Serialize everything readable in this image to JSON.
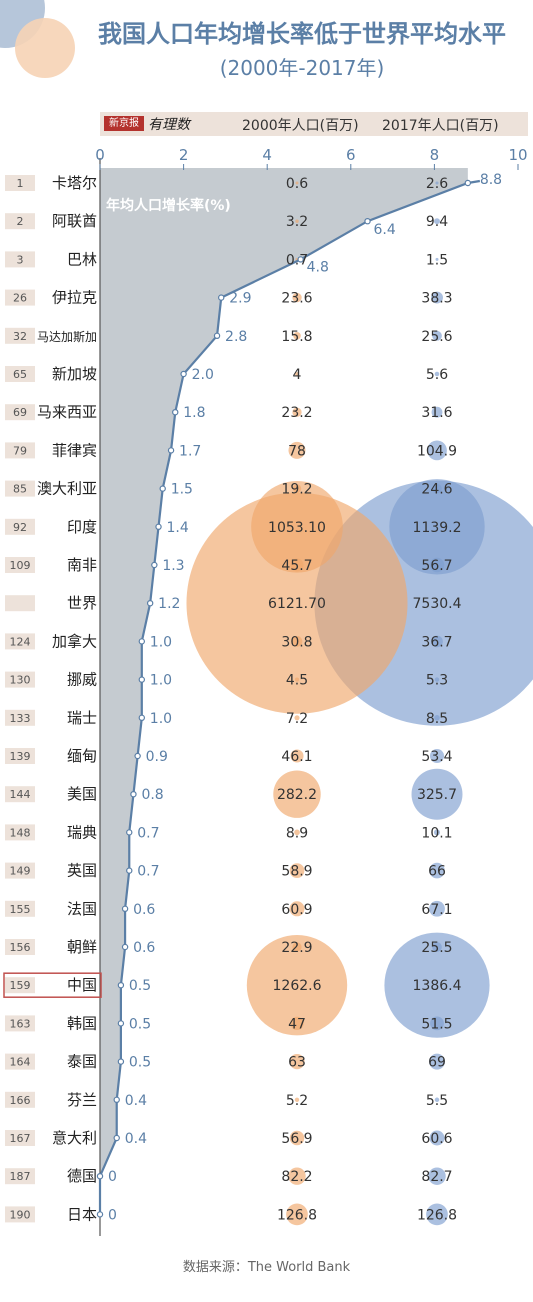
{
  "header": {
    "title": "我国人口年均增长率低于世界平均水平",
    "subtitle": "(2000年-2017年)",
    "logo_text": "新京报",
    "logo_script": "有理数",
    "col_2000": "2000年人口(百万)",
    "col_2017": "2017年人口(百万)"
  },
  "source": "数据来源：The World Bank",
  "colors": {
    "title": "#5b7fa6",
    "line": "#5b7fa6",
    "area": "#bfc5cb",
    "bubble_2000": "#f0a76c",
    "bubble_2017": "#7e9ed0",
    "rank_bg": "#ede2da",
    "highlight_border": "#c0504d"
  },
  "chart_data": {
    "type": "line",
    "series_label": "年均人口增长率(%)",
    "xlim": [
      0,
      10
    ],
    "x_ticks": [
      "0",
      "2",
      "4",
      "6",
      "8",
      "10"
    ],
    "rows": [
      {
        "rank": "1",
        "country": "卡塔尔",
        "growth": 8.8,
        "growth_label": "8.8",
        "pop2000": 0.6,
        "pop2000_label": "0.6",
        "pop2017": 2.6,
        "pop2017_label": "2.6"
      },
      {
        "rank": "2",
        "country": "阿联酋",
        "growth": 6.4,
        "growth_label": "6.4",
        "pop2000": 3.2,
        "pop2000_label": "3.2",
        "pop2017": 9.4,
        "pop2017_label": "9.4"
      },
      {
        "rank": "3",
        "country": "巴林",
        "growth": 4.8,
        "growth_label": "4.8",
        "pop2000": 0.7,
        "pop2000_label": "0.7",
        "pop2017": 1.5,
        "pop2017_label": "1.5"
      },
      {
        "rank": "26",
        "country": "伊拉克",
        "growth": 2.9,
        "growth_label": "2.9",
        "pop2000": 23.6,
        "pop2000_label": "23.6",
        "pop2017": 38.3,
        "pop2017_label": "38.3"
      },
      {
        "rank": "32",
        "country": "马达加斯加",
        "growth": 2.8,
        "growth_label": "2.8",
        "pop2000": 15.8,
        "pop2000_label": "15.8",
        "pop2017": 25.6,
        "pop2017_label": "25.6"
      },
      {
        "rank": "65",
        "country": "新加坡",
        "growth": 2.0,
        "growth_label": "2.0",
        "pop2000": 4,
        "pop2000_label": "4",
        "pop2017": 5.6,
        "pop2017_label": "5.6"
      },
      {
        "rank": "69",
        "country": "马来西亚",
        "growth": 1.8,
        "growth_label": "1.8",
        "pop2000": 23.2,
        "pop2000_label": "23.2",
        "pop2017": 31.6,
        "pop2017_label": "31.6"
      },
      {
        "rank": "79",
        "country": "菲律宾",
        "growth": 1.7,
        "growth_label": "1.7",
        "pop2000": 78,
        "pop2000_label": "78",
        "pop2017": 104.9,
        "pop2017_label": "104.9"
      },
      {
        "rank": "85",
        "country": "澳大利亚",
        "growth": 1.5,
        "growth_label": "1.5",
        "pop2000": 19.2,
        "pop2000_label": "19.2",
        "pop2017": 24.6,
        "pop2017_label": "24.6"
      },
      {
        "rank": "92",
        "country": "印度",
        "growth": 1.4,
        "growth_label": "1.4",
        "pop2000": 1053.1,
        "pop2000_label": "1053.10",
        "pop2017": 1139.2,
        "pop2017_label": "1139.2"
      },
      {
        "rank": "109",
        "country": "南非",
        "growth": 1.3,
        "growth_label": "1.3",
        "pop2000": 45.7,
        "pop2000_label": "45.7",
        "pop2017": 56.7,
        "pop2017_label": "56.7"
      },
      {
        "rank": "",
        "country": "世界",
        "growth": 1.2,
        "growth_label": "1.2",
        "pop2000": 6121.7,
        "pop2000_label": "6121.70",
        "pop2017": 7530.4,
        "pop2017_label": "7530.4"
      },
      {
        "rank": "124",
        "country": "加拿大",
        "growth": 1.0,
        "growth_label": "1.0",
        "pop2000": 30.8,
        "pop2000_label": "30.8",
        "pop2017": 36.7,
        "pop2017_label": "36.7"
      },
      {
        "rank": "130",
        "country": "挪威",
        "growth": 1.0,
        "growth_label": "1.0",
        "pop2000": 4.5,
        "pop2000_label": "4.5",
        "pop2017": 5.3,
        "pop2017_label": "5.3"
      },
      {
        "rank": "133",
        "country": "瑞士",
        "growth": 1.0,
        "growth_label": "1.0",
        "pop2000": 7.2,
        "pop2000_label": "7.2",
        "pop2017": 8.5,
        "pop2017_label": "8.5"
      },
      {
        "rank": "139",
        "country": "缅甸",
        "growth": 0.9,
        "growth_label": "0.9",
        "pop2000": 46.1,
        "pop2000_label": "46.1",
        "pop2017": 53.4,
        "pop2017_label": "53.4"
      },
      {
        "rank": "144",
        "country": "美国",
        "growth": 0.8,
        "growth_label": "0.8",
        "pop2000": 282.2,
        "pop2000_label": "282.2",
        "pop2017": 325.7,
        "pop2017_label": "325.7"
      },
      {
        "rank": "148",
        "country": "瑞典",
        "growth": 0.7,
        "growth_label": "0.7",
        "pop2000": 8.9,
        "pop2000_label": "8.9",
        "pop2017": 10.1,
        "pop2017_label": "10.1"
      },
      {
        "rank": "149",
        "country": "英国",
        "growth": 0.7,
        "growth_label": "0.7",
        "pop2000": 58.9,
        "pop2000_label": "58.9",
        "pop2017": 66,
        "pop2017_label": "66"
      },
      {
        "rank": "155",
        "country": "法国",
        "growth": 0.6,
        "growth_label": "0.6",
        "pop2000": 60.9,
        "pop2000_label": "60.9",
        "pop2017": 67.1,
        "pop2017_label": "67.1"
      },
      {
        "rank": "156",
        "country": "朝鲜",
        "growth": 0.6,
        "growth_label": "0.6",
        "pop2000": 22.9,
        "pop2000_label": "22.9",
        "pop2017": 25.5,
        "pop2017_label": "25.5"
      },
      {
        "rank": "159",
        "country": "中国",
        "growth": 0.5,
        "growth_label": "0.5",
        "pop2000": 1262.6,
        "pop2000_label": "1262.6",
        "pop2017": 1386.4,
        "pop2017_label": "1386.4",
        "highlight": true
      },
      {
        "rank": "163",
        "country": "韩国",
        "growth": 0.5,
        "growth_label": "0.5",
        "pop2000": 47,
        "pop2000_label": "47",
        "pop2017": 51.5,
        "pop2017_label": "51.5"
      },
      {
        "rank": "164",
        "country": "泰国",
        "growth": 0.5,
        "growth_label": "0.5",
        "pop2000": 63,
        "pop2000_label": "63",
        "pop2017": 69,
        "pop2017_label": "69"
      },
      {
        "rank": "166",
        "country": "芬兰",
        "growth": 0.4,
        "growth_label": "0.4",
        "pop2000": 5.2,
        "pop2000_label": "5.2",
        "pop2017": 5.5,
        "pop2017_label": "5.5"
      },
      {
        "rank": "167",
        "country": "意大利",
        "growth": 0.4,
        "growth_label": "0.4",
        "pop2000": 56.9,
        "pop2000_label": "56.9",
        "pop2017": 60.6,
        "pop2017_label": "60.6"
      },
      {
        "rank": "187",
        "country": "德国",
        "growth": 0,
        "growth_label": "0",
        "pop2000": 82.2,
        "pop2000_label": "82.2",
        "pop2017": 82.7,
        "pop2017_label": "82.7"
      },
      {
        "rank": "190",
        "country": "日本",
        "growth": 0,
        "growth_label": "0",
        "pop2000": 126.8,
        "pop2000_label": "126.8",
        "pop2017": 126.8,
        "pop2017_label": "126.8"
      }
    ]
  }
}
